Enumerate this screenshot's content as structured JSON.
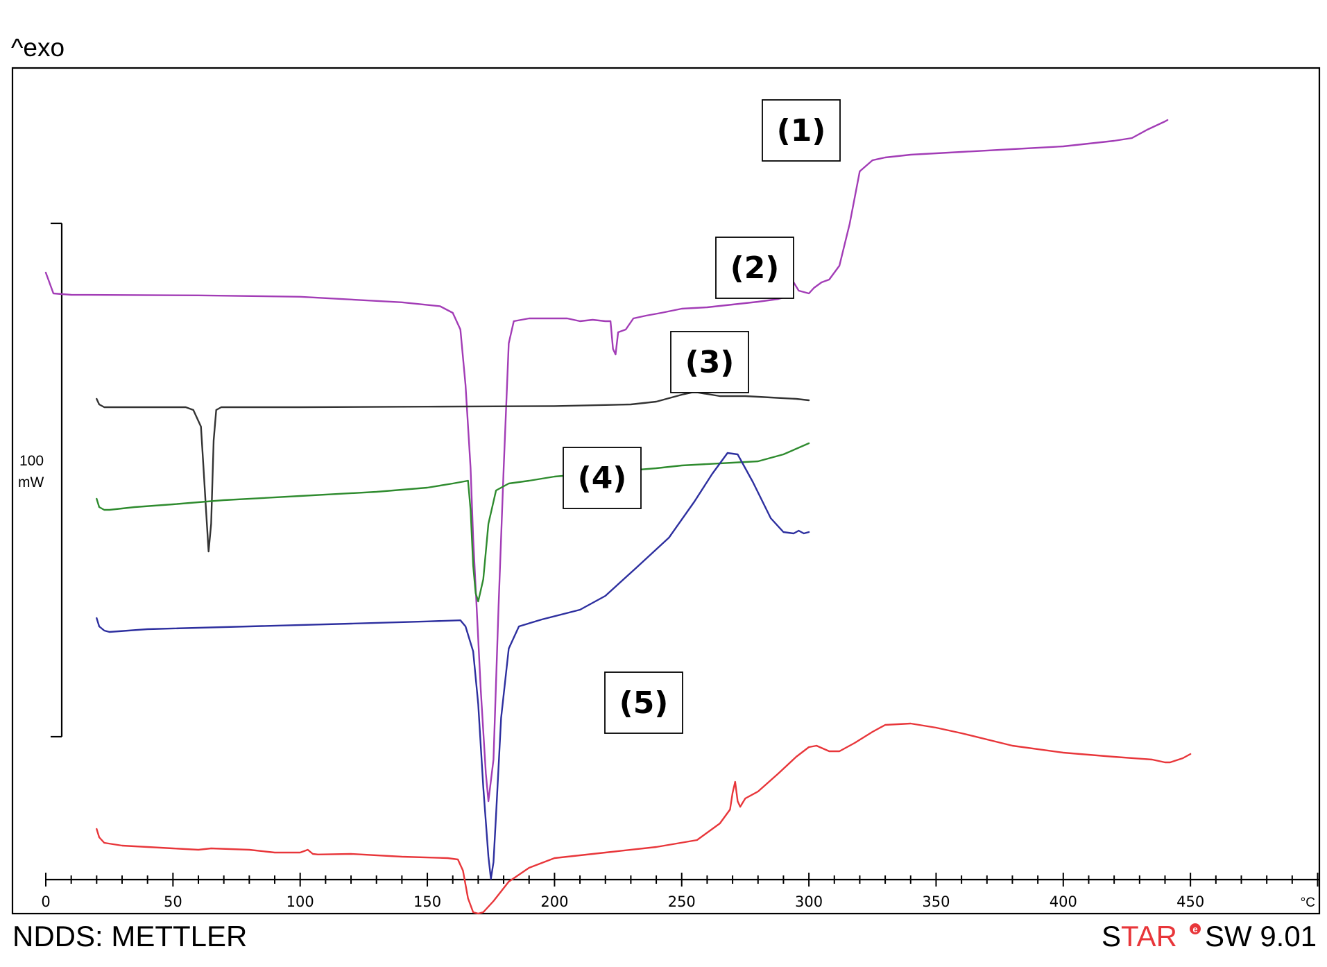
{
  "chart_data": {
    "type": "line",
    "title": "",
    "y_annotation": "^exo",
    "x_unit": "°C",
    "xlim": [
      0,
      500
    ],
    "x_ticks": [
      0,
      50,
      100,
      150,
      200,
      250,
      300,
      350,
      400,
      450
    ],
    "scale_bar": {
      "value": "100",
      "unit": "mW"
    },
    "grid": false,
    "series": [
      {
        "label": "(1)",
        "color": "#a23cb6",
        "points": [
          [
            0,
            100.5
          ],
          [
            1,
            98
          ],
          [
            3,
            93
          ],
          [
            10,
            92.5
          ],
          [
            60,
            92.3
          ],
          [
            100,
            91.8
          ],
          [
            140,
            89.8
          ],
          [
            155,
            88.4
          ],
          [
            160,
            86
          ],
          [
            163,
            80
          ],
          [
            165,
            60
          ],
          [
            167,
            30
          ],
          [
            168,
            5
          ],
          [
            171,
            -50
          ],
          [
            173,
            -80
          ],
          [
            174,
            -90
          ],
          [
            176,
            -75
          ],
          [
            178,
            -20
          ],
          [
            180,
            30
          ],
          [
            182,
            75
          ],
          [
            184,
            83
          ],
          [
            190,
            84
          ],
          [
            205,
            84
          ],
          [
            210,
            83
          ],
          [
            215,
            83.5
          ],
          [
            220,
            83
          ],
          [
            222,
            83
          ],
          [
            223,
            73
          ],
          [
            224,
            71
          ],
          [
            225,
            79
          ],
          [
            228,
            80
          ],
          [
            231,
            84
          ],
          [
            236,
            85
          ],
          [
            242,
            86
          ],
          [
            250,
            87.5
          ],
          [
            260,
            88
          ],
          [
            270,
            89
          ],
          [
            280,
            90
          ],
          [
            288,
            91
          ],
          [
            292,
            92
          ],
          [
            294,
            97
          ],
          [
            296,
            94
          ],
          [
            300,
            93
          ],
          [
            302,
            95
          ],
          [
            305,
            97
          ],
          [
            308,
            98
          ],
          [
            312,
            103
          ],
          [
            316,
            118
          ],
          [
            320,
            137
          ],
          [
            325,
            141
          ],
          [
            330,
            142
          ],
          [
            340,
            143
          ],
          [
            360,
            144
          ],
          [
            380,
            145
          ],
          [
            400,
            146
          ],
          [
            420,
            148
          ],
          [
            427,
            149
          ],
          [
            433,
            152
          ],
          [
            440,
            155
          ],
          [
            441,
            155.5
          ]
        ]
      },
      {
        "label": "(2)",
        "color": "#333333",
        "points": [
          [
            20,
            55
          ],
          [
            21,
            53
          ],
          [
            23,
            52
          ],
          [
            40,
            52
          ],
          [
            55,
            52
          ],
          [
            58,
            51
          ],
          [
            61,
            45
          ],
          [
            62,
            30
          ],
          [
            63,
            15
          ],
          [
            64,
            0
          ],
          [
            65,
            10
          ],
          [
            66,
            40
          ],
          [
            67,
            51
          ],
          [
            69,
            52
          ],
          [
            100,
            52
          ],
          [
            150,
            52.2
          ],
          [
            200,
            52.4
          ],
          [
            230,
            53
          ],
          [
            240,
            54
          ],
          [
            250,
            56.5
          ],
          [
            255,
            57.5
          ],
          [
            265,
            56
          ],
          [
            275,
            56
          ],
          [
            285,
            55.5
          ],
          [
            295,
            55
          ],
          [
            300,
            54.5
          ]
        ]
      },
      {
        "label": "(3)",
        "color": "#2e8b2e",
        "points": [
          [
            20,
            19
          ],
          [
            21,
            16
          ],
          [
            23,
            15
          ],
          [
            25,
            15
          ],
          [
            35,
            16
          ],
          [
            50,
            17
          ],
          [
            70,
            18.5
          ],
          [
            100,
            20
          ],
          [
            130,
            21.5
          ],
          [
            150,
            23
          ],
          [
            160,
            24.5
          ],
          [
            166,
            25.5
          ],
          [
            167,
            15
          ],
          [
            168,
            -5
          ],
          [
            169,
            -15
          ],
          [
            170,
            -18
          ],
          [
            172,
            -10
          ],
          [
            174,
            10
          ],
          [
            177,
            22
          ],
          [
            182,
            24.5
          ],
          [
            190,
            25.5
          ],
          [
            200,
            27
          ],
          [
            220,
            28.5
          ],
          [
            240,
            30
          ],
          [
            250,
            31
          ],
          [
            270,
            32
          ],
          [
            280,
            32.5
          ],
          [
            290,
            35
          ],
          [
            300,
            39
          ]
        ]
      },
      {
        "label": "(4)",
        "color": "#2d2f9f",
        "points": [
          [
            20,
            -24
          ],
          [
            21,
            -27
          ],
          [
            23,
            -28.5
          ],
          [
            25,
            -29
          ],
          [
            40,
            -28
          ],
          [
            80,
            -27
          ],
          [
            120,
            -26
          ],
          [
            150,
            -25.2
          ],
          [
            163,
            -24.8
          ],
          [
            165,
            -27
          ],
          [
            168,
            -36
          ],
          [
            170,
            -55
          ],
          [
            172,
            -85
          ],
          [
            174,
            -110
          ],
          [
            175,
            -118
          ],
          [
            176,
            -112
          ],
          [
            177,
            -95
          ],
          [
            179,
            -60
          ],
          [
            182,
            -35
          ],
          [
            186,
            -27
          ],
          [
            195,
            -24.5
          ],
          [
            210,
            -21
          ],
          [
            220,
            -16
          ],
          [
            232,
            -6
          ],
          [
            245,
            5
          ],
          [
            255,
            18
          ],
          [
            262,
            28
          ],
          [
            268,
            35.5
          ],
          [
            272,
            35
          ],
          [
            278,
            25
          ],
          [
            285,
            12
          ],
          [
            290,
            7
          ],
          [
            294,
            6.5
          ],
          [
            296,
            7.5
          ],
          [
            298,
            6.5
          ],
          [
            300,
            7
          ]
        ]
      },
      {
        "label": "(5)",
        "color": "#e8363a",
        "points": [
          [
            20,
            -100
          ],
          [
            21,
            -103
          ],
          [
            23,
            -105
          ],
          [
            30,
            -106
          ],
          [
            50,
            -107
          ],
          [
            60,
            -107.5
          ],
          [
            65,
            -107
          ],
          [
            80,
            -107.5
          ],
          [
            90,
            -108.5
          ],
          [
            100,
            -108.5
          ],
          [
            103,
            -107.5
          ],
          [
            105,
            -109
          ],
          [
            107,
            -109.2
          ],
          [
            120,
            -109
          ],
          [
            140,
            -110
          ],
          [
            158,
            -110.5
          ],
          [
            162,
            -111
          ],
          [
            164,
            -115
          ],
          [
            166,
            -125
          ],
          [
            168,
            -130
          ],
          [
            170,
            -130.5
          ],
          [
            172,
            -130
          ],
          [
            176,
            -126
          ],
          [
            182,
            -119
          ],
          [
            190,
            -114
          ],
          [
            200,
            -110.5
          ],
          [
            220,
            -108.5
          ],
          [
            240,
            -106.5
          ],
          [
            256,
            -104
          ],
          [
            265,
            -98
          ],
          [
            269,
            -93
          ],
          [
            270,
            -87
          ],
          [
            271,
            -83
          ],
          [
            272,
            -90
          ],
          [
            273,
            -92
          ],
          [
            275,
            -89
          ],
          [
            280,
            -86.5
          ],
          [
            288,
            -80
          ],
          [
            295,
            -74
          ],
          [
            300,
            -70.5
          ],
          [
            303,
            -70
          ],
          [
            308,
            -72
          ],
          [
            312,
            -72
          ],
          [
            318,
            -69
          ],
          [
            325,
            -65
          ],
          [
            330,
            -62.5
          ],
          [
            340,
            -62
          ],
          [
            350,
            -63.5
          ],
          [
            360,
            -65.5
          ],
          [
            380,
            -70
          ],
          [
            400,
            -72.5
          ],
          [
            420,
            -74
          ],
          [
            435,
            -75
          ],
          [
            440,
            -76
          ],
          [
            442,
            -76
          ],
          [
            447,
            -74.5
          ],
          [
            450,
            -73
          ]
        ]
      }
    ]
  },
  "footer": {
    "left": "NDDS: METTLER",
    "right_brand": "STAR",
    "right_brand_sup": "e",
    "right_version": "SW 9.01"
  }
}
